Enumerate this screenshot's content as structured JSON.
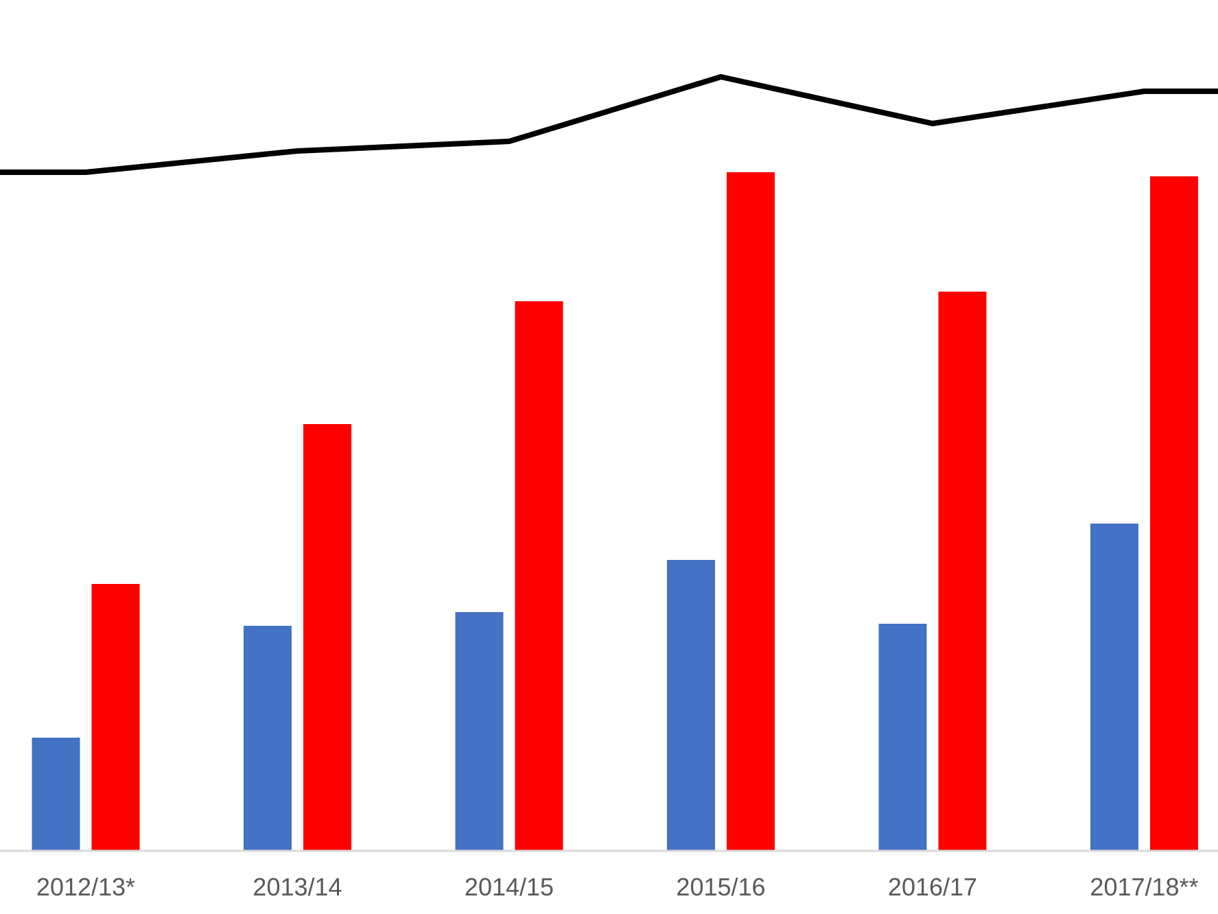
{
  "chart_data": {
    "type": "bar",
    "categories": [
      "2012/13*",
      "2013/14",
      "2014/15",
      "2015/16",
      "2016/17",
      "2017/18**"
    ],
    "series": [
      {
        "kind": "bar",
        "color": "#4472C4",
        "values": [
          165,
          328,
          348,
          424,
          331,
          477
        ]
      },
      {
        "kind": "bar",
        "color": "#FF0000",
        "values": [
          389,
          622,
          801,
          989,
          815,
          983
        ]
      },
      {
        "kind": "line",
        "color": "#000000",
        "values": [
          989,
          1020,
          1034,
          1128,
          1060,
          1107
        ]
      }
    ],
    "ylim": [
      0,
      1240
    ],
    "grid": false,
    "legend": "none"
  }
}
